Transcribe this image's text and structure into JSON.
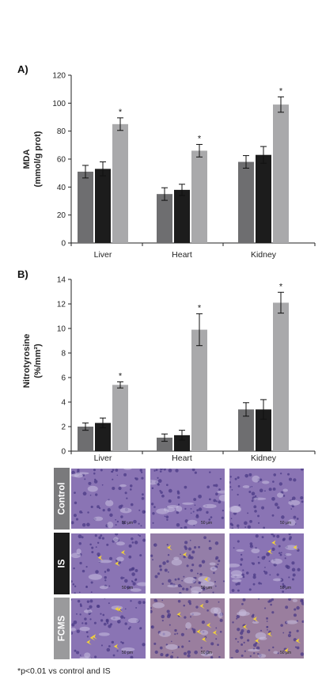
{
  "chart_data": [
    {
      "panel": "A)",
      "type": "bar",
      "ylabel_line1": "MDA",
      "ylabel_line2": "(mmol/g prot)",
      "ylim": [
        0,
        120
      ],
      "yticks": [
        0,
        20,
        40,
        60,
        80,
        100,
        120
      ],
      "categories": [
        "Liver",
        "Heart",
        "Kidney"
      ],
      "series": [
        {
          "color": "#6e6e70",
          "values": [
            51,
            35,
            58
          ],
          "errors": [
            4.5,
            4.5,
            4.5
          ]
        },
        {
          "color": "#1c1c1c",
          "values": [
            53,
            38,
            63
          ],
          "errors": [
            5,
            4,
            6
          ]
        },
        {
          "color": "#a9a9ab",
          "values": [
            85,
            66,
            99
          ],
          "errors": [
            4.5,
            4.5,
            5.5
          ]
        }
      ],
      "annotations": [
        "*",
        "*",
        "*"
      ]
    },
    {
      "panel": "B)",
      "type": "bar",
      "ylabel_line1": "Nitrotyrosine",
      "ylabel_line2": "(%/mm²)",
      "ylim": [
        0,
        14
      ],
      "yticks": [
        0,
        2,
        4,
        6,
        8,
        10,
        12,
        14
      ],
      "categories": [
        "Liver",
        "Heart",
        "Kidney"
      ],
      "series": [
        {
          "color": "#6e6e70",
          "values": [
            2.0,
            1.1,
            3.4
          ],
          "errors": [
            0.3,
            0.3,
            0.55
          ]
        },
        {
          "color": "#1c1c1c",
          "values": [
            2.3,
            1.3,
            3.4
          ],
          "errors": [
            0.4,
            0.4,
            0.8
          ]
        },
        {
          "color": "#a9a9ab",
          "values": [
            5.4,
            9.9,
            12.1
          ],
          "errors": [
            0.25,
            1.3,
            0.85
          ]
        }
      ],
      "annotations": [
        "*",
        "*",
        "*"
      ]
    }
  ],
  "histology": {
    "rows": [
      {
        "label": "Control",
        "color": "#7a7a7c"
      },
      {
        "label": "IS",
        "color": "#1c1c1c"
      },
      {
        "label": "FCMS",
        "color": "#9a9a9c"
      }
    ],
    "tile_base_color": "#8a74b4",
    "scale_bar_text": "50 μm"
  },
  "footnote": "*p<0.01 vs control and IS"
}
